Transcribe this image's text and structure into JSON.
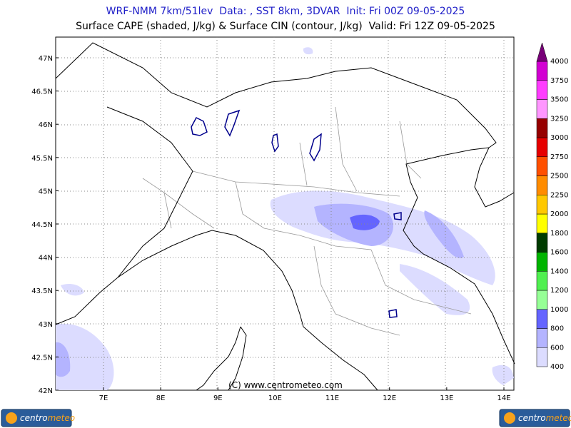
{
  "header": {
    "title": "WRF-NMM 7km/51lev  Data: , SST 8km, 3DVAR  Init: Fri 00Z 09-05-2025",
    "subtitle": "Surface CAPE (shaded, J/kg) & Surface CIN (contour, J/kg)  Valid: Fri 12Z 09-05-2025"
  },
  "map": {
    "lat_labels": [
      "47N",
      "46.5N",
      "46N",
      "45.5N",
      "45N",
      "44.5N",
      "44N",
      "43.5N",
      "43N",
      "42.5N",
      "42N"
    ],
    "lon_labels": [
      "7E",
      "8E",
      "9E",
      "10E",
      "11E",
      "12E",
      "13E",
      "14E"
    ],
    "copyright": "(C) www.centrometeo.com"
  },
  "colorbar": {
    "labels": [
      "400",
      "600",
      "800",
      "1000",
      "1200",
      "1400",
      "1600",
      "1800",
      "2000",
      "2250",
      "2500",
      "2750",
      "3000",
      "3250",
      "3500",
      "3750",
      "4000"
    ],
    "colors": [
      "#dcdcff",
      "#b4b4ff",
      "#6464ff",
      "#96ff96",
      "#50f050",
      "#00b400",
      "#003c00",
      "#ffff00",
      "#ffc800",
      "#ff8c00",
      "#ff5000",
      "#e60000",
      "#960000",
      "#ff96ff",
      "#ff3cff",
      "#d200d2"
    ],
    "extend_color": "#780078"
  },
  "logos": [
    {
      "part1": "centro",
      "part2": "meteo"
    },
    {
      "part1": "centro",
      "part2": "meteo"
    }
  ]
}
